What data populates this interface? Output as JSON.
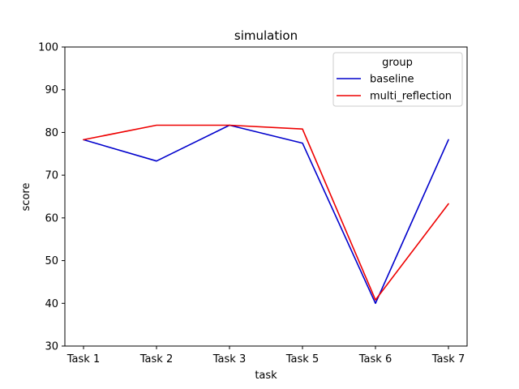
{
  "chart_data": {
    "type": "line",
    "title": "simulation",
    "xlabel": "task",
    "ylabel": "score",
    "categories": [
      "Task 1",
      "Task 2",
      "Task 3",
      "Task 5",
      "Task 6",
      "Task 7"
    ],
    "ylim": [
      30,
      100
    ],
    "yticks": [
      30,
      40,
      50,
      60,
      70,
      80,
      90,
      100
    ],
    "grid": false,
    "legend": {
      "title": "group",
      "placement": "top-right"
    },
    "series": [
      {
        "name": "baseline",
        "color": "#0000cc",
        "values": [
          78.3,
          73.3,
          81.7,
          77.5,
          40.0,
          78.3
        ]
      },
      {
        "name": "multi_reflection",
        "color": "#ee0000",
        "values": [
          78.3,
          81.7,
          81.7,
          80.8,
          40.8,
          63.3
        ]
      }
    ]
  }
}
